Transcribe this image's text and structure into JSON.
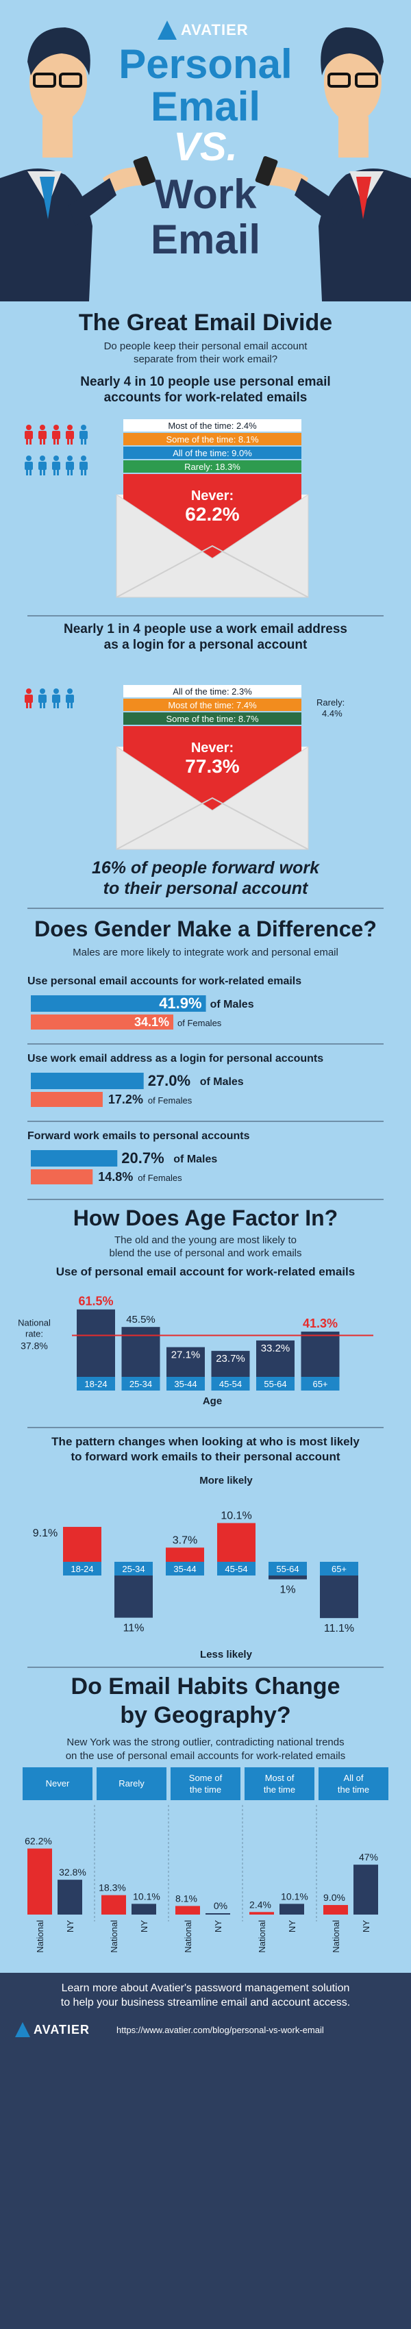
{
  "header": {
    "logo_text": "AVATIER",
    "title_line1": "Personal",
    "title_line2": "Email",
    "title_vs": "VS.",
    "title_line3": "Work",
    "title_line4": "Email"
  },
  "divide": {
    "heading": "The Great Email Divide",
    "intro_line1": "Do people keep their personal email account",
    "intro_line2": "separate from their work email?",
    "stat1_line1": "Nearly 4 in 10 people use personal email",
    "stat1_line2": "accounts for work-related emails",
    "stat2_line1": "Nearly 1 in 4 people use a work email address",
    "stat2_line2": "as a login for a personal account",
    "forward_line1": "16% of people forward work",
    "forward_line2": "to their personal account"
  },
  "gender": {
    "heading": "Does Gender Make a Difference?",
    "intro": "Males are more likely to integrate work and personal email"
  },
  "age": {
    "heading": "How Does Age Factor In?",
    "intro_line1": "The old and the young are most likely to",
    "intro_line2": "blend the use of personal and work emails",
    "chart1_title": "Use of personal email account for work-related emails",
    "chart2_title_line1": "The pattern changes when looking at who is most likely",
    "chart2_title_line2": "to forward work emails to their personal account"
  },
  "geo": {
    "heading_line1": "Do Email Habits Change",
    "heading_line2": "by Geography?",
    "intro_line1": "New York was the strong outlier, contradicting national trends",
    "intro_line2": "on the use of personal email accounts for work-related emails"
  },
  "footer": {
    "text_line1": "Learn more about Avatier's password management solution",
    "text_line2": "to help your business streamline email and account access.",
    "logo_text": "AVATIER",
    "url": "https://www.avatier.com/blog/personal-vs-work-email"
  },
  "colors": {
    "background": "#a6d4f0",
    "navy": "#2a3d61",
    "red": "#e52c2c",
    "blue": "#1e86c8",
    "coral": "#f26850",
    "orange": "#f28c1e",
    "green": "#2e9b4f",
    "dark_green": "#2a6e44",
    "footer": "#2d3e5e"
  },
  "chart_data": [
    {
      "type": "bar",
      "id": "personal-for-work",
      "stacked": true,
      "categories": [
        "Most of the time:",
        "Some of the time:",
        "All of the time:",
        "Rarely:",
        "Never:"
      ],
      "values": [
        2.4,
        8.1,
        9.0,
        18.3,
        62.2
      ],
      "value_labels": [
        "2.4%",
        "8.1%",
        "9.0%",
        "18.3%",
        "62.2%"
      ]
    },
    {
      "type": "bar",
      "id": "work-as-login",
      "stacked": true,
      "categories": [
        "All of the time:",
        "Most of the time:",
        "Some of the time:",
        "Rarely:",
        "Never:"
      ],
      "values": [
        2.3,
        7.4,
        8.7,
        4.4,
        77.3
      ],
      "value_labels": [
        "2.3%",
        "7.4%",
        "8.7%",
        "4.4%",
        "77.3%"
      ]
    },
    {
      "type": "bar",
      "id": "gender",
      "orientation": "horizontal",
      "groups": [
        {
          "title": "Use personal email accounts for work-related emails",
          "males": 41.9,
          "females": 34.1,
          "males_label": "41.9%",
          "females_label": "34.1%"
        },
        {
          "title": "Use work email address as a login for personal accounts",
          "males": 27.0,
          "females": 17.2,
          "males_label": "27.0%",
          "females_label": "17.2%"
        },
        {
          "title": "Forward work emails to personal accounts",
          "males": 20.7,
          "females": 14.8,
          "males_label": "20.7%",
          "females_label": "14.8%"
        }
      ],
      "male_suffix": "of Males",
      "female_suffix": "of Females"
    },
    {
      "type": "bar",
      "id": "age-personal",
      "categories": [
        "18-24",
        "25-34",
        "35-44",
        "45-54",
        "55-64",
        "65+"
      ],
      "values": [
        61.5,
        45.5,
        27.1,
        23.7,
        33.2,
        41.3
      ],
      "value_labels": [
        "61.5%",
        "45.5%",
        "27.1%",
        "23.7%",
        "33.2%",
        "41.3%"
      ],
      "highlight": [
        true,
        false,
        false,
        false,
        false,
        true
      ],
      "national_rate": 37.8,
      "national_label_line1": "National",
      "national_label_line2": "rate:",
      "national_value_label": "37.8%",
      "xlabel": "Age"
    },
    {
      "type": "bar",
      "id": "age-forward",
      "categories": [
        "18-24",
        "25-34",
        "35-44",
        "45-54",
        "55-64",
        "65+"
      ],
      "values": [
        9.1,
        -11,
        3.7,
        10.1,
        -1,
        -11.1
      ],
      "value_labels": [
        "9.1%",
        "11%",
        "3.7%",
        "10.1%",
        "1%",
        "11.1%"
      ],
      "more_label": "More likely",
      "less_label": "Less likely"
    },
    {
      "type": "bar",
      "id": "geography",
      "categories": [
        "Never",
        "Rarely",
        "Some of the time",
        "Most of the time",
        "All of the time"
      ],
      "series": [
        {
          "name": "National",
          "values": [
            62.2,
            18.3,
            8.1,
            2.4,
            9.0
          ],
          "labels": [
            "62.2%",
            "18.3%",
            "8.1%",
            "2.4%",
            "9.0%"
          ]
        },
        {
          "name": "NY",
          "values": [
            32.8,
            10.1,
            0,
            10.1,
            47
          ],
          "labels": [
            "32.8%",
            "10.1%",
            "0%",
            "10.1%",
            "47%"
          ]
        }
      ]
    }
  ]
}
